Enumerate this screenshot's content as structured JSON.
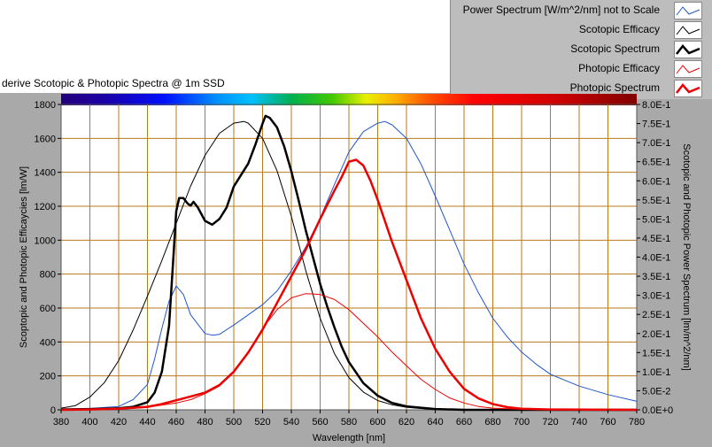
{
  "title": "derive Scotopic & Photopic Spectra @ 1m SSD",
  "legend": [
    {
      "label": "Power Spectrum [W/m^2/nm] not to Scale",
      "color": "#2255cc",
      "width": 1
    },
    {
      "label": "Scotopic Efficacy",
      "color": "#000000",
      "width": 1
    },
    {
      "label": "Scotopic Spectrum",
      "color": "#000000",
      "width": 2.5
    },
    {
      "label": "Photopic Efficacy",
      "color": "#ee0000",
      "width": 1
    },
    {
      "label": "Photopic Spectrum",
      "color": "#ee0000",
      "width": 2.5
    }
  ],
  "chart_data": {
    "type": "line",
    "xlabel": "Wavelength [nm]",
    "ylabel": "Scoptopic and Photopic Efficaycies [lm/W]",
    "y2label": "Scotopic and Photopic Power Spectrum [lm/m^2/nm]",
    "xlim": [
      380,
      780
    ],
    "ylim": [
      0,
      1800
    ],
    "y2lim": [
      0,
      0.8
    ],
    "x_ticks": [
      "380",
      "400",
      "420",
      "440",
      "460",
      "480",
      "500",
      "520",
      "540",
      "560",
      "580",
      "600",
      "620",
      "640",
      "660",
      "680",
      "700",
      "720",
      "740",
      "760",
      "780"
    ],
    "y_ticks": [
      "0",
      "200",
      "400",
      "600",
      "800",
      "1000",
      "1200",
      "1400",
      "1600",
      "1800"
    ],
    "y2_ticks": [
      "0.0E+0",
      "5.0E-2",
      "1.0E-1",
      "1.5E-1",
      "2.0E-1",
      "2.5E-1",
      "3.0E-1",
      "3.5E-1",
      "4.0E-1",
      "4.5E-1",
      "5.0E-1",
      "5.5E-1",
      "6.0E-1",
      "6.5E-1",
      "7.0E-1",
      "7.5E-1",
      "8.0E-1"
    ],
    "grid": true,
    "series": [
      {
        "name": "Power Spectrum [W/m^2/nm] not to Scale",
        "axis": "left",
        "color": "#2255cc",
        "width": 1,
        "x": [
          380,
          400,
          420,
          430,
          440,
          445,
          450,
          455,
          460,
          465,
          470,
          480,
          485,
          490,
          500,
          510,
          520,
          530,
          540,
          550,
          560,
          570,
          580,
          590,
          600,
          605,
          610,
          620,
          630,
          640,
          650,
          660,
          670,
          680,
          690,
          700,
          710,
          720,
          740,
          760,
          780
        ],
        "y": [
          5,
          8,
          20,
          60,
          150,
          300,
          480,
          640,
          730,
          680,
          560,
          450,
          440,
          445,
          500,
          560,
          620,
          700,
          820,
          960,
          1130,
          1330,
          1520,
          1640,
          1690,
          1700,
          1680,
          1600,
          1450,
          1260,
          1060,
          860,
          690,
          540,
          430,
          340,
          270,
          210,
          140,
          90,
          50
        ]
      },
      {
        "name": "Scotopic Efficacy",
        "axis": "left",
        "color": "#000000",
        "width": 1,
        "x": [
          380,
          390,
          400,
          410,
          420,
          430,
          440,
          450,
          460,
          470,
          480,
          490,
          500,
          507,
          510,
          520,
          530,
          540,
          550,
          560,
          570,
          580,
          590,
          600,
          610,
          620,
          630,
          640,
          650,
          660,
          680,
          700,
          740,
          780
        ],
        "y": [
          10,
          25,
          75,
          160,
          290,
          470,
          670,
          880,
          1100,
          1320,
          1500,
          1630,
          1690,
          1700,
          1690,
          1600,
          1410,
          1140,
          820,
          540,
          330,
          190,
          105,
          55,
          30,
          15,
          8,
          4,
          2,
          1,
          0,
          0,
          0,
          0
        ]
      },
      {
        "name": "Scotopic Spectrum",
        "axis": "right",
        "color": "#000000",
        "width": 2.5,
        "x": [
          380,
          400,
          420,
          430,
          440,
          445,
          450,
          455,
          458,
          460,
          462,
          465,
          468,
          470,
          472,
          475,
          480,
          485,
          490,
          495,
          500,
          505,
          510,
          515,
          520,
          522,
          525,
          530,
          535,
          540,
          545,
          550,
          555,
          560,
          565,
          570,
          575,
          580,
          590,
          600,
          610,
          620,
          640,
          660,
          680,
          780
        ],
        "y": [
          0.001,
          0.002,
          0.004,
          0.008,
          0.02,
          0.045,
          0.1,
          0.22,
          0.4,
          0.52,
          0.555,
          0.555,
          0.54,
          0.535,
          0.545,
          0.53,
          0.495,
          0.485,
          0.5,
          0.53,
          0.585,
          0.615,
          0.645,
          0.695,
          0.75,
          0.77,
          0.765,
          0.74,
          0.69,
          0.625,
          0.55,
          0.47,
          0.4,
          0.33,
          0.27,
          0.215,
          0.165,
          0.125,
          0.07,
          0.037,
          0.018,
          0.009,
          0.002,
          0.0,
          0.0,
          0.0
        ]
      },
      {
        "name": "Photopic Efficacy",
        "axis": "left",
        "color": "#ee0000",
        "width": 1,
        "x": [
          380,
          400,
          420,
          440,
          460,
          470,
          480,
          490,
          500,
          510,
          520,
          530,
          540,
          550,
          555,
          560,
          570,
          580,
          590,
          600,
          610,
          620,
          630,
          640,
          650,
          660,
          670,
          680,
          700,
          720,
          740,
          780
        ],
        "y": [
          0,
          1,
          3,
          15,
          40,
          60,
          95,
          140,
          220,
          340,
          480,
          590,
          660,
          685,
          683,
          680,
          650,
          590,
          510,
          430,
          340,
          260,
          180,
          120,
          70,
          40,
          20,
          10,
          3,
          1,
          0,
          0
        ]
      },
      {
        "name": "Photopic Spectrum",
        "axis": "right",
        "color": "#ee0000",
        "width": 2.5,
        "x": [
          380,
          400,
          420,
          440,
          450,
          460,
          470,
          480,
          490,
          500,
          510,
          520,
          530,
          540,
          550,
          560,
          570,
          575,
          580,
          585,
          590,
          595,
          600,
          610,
          620,
          630,
          640,
          650,
          660,
          670,
          680,
          690,
          700,
          720,
          780
        ],
        "y": [
          0,
          0.001,
          0.003,
          0.008,
          0.015,
          0.025,
          0.035,
          0.045,
          0.065,
          0.1,
          0.15,
          0.21,
          0.28,
          0.35,
          0.42,
          0.5,
          0.575,
          0.61,
          0.65,
          0.655,
          0.64,
          0.6,
          0.55,
          0.44,
          0.34,
          0.24,
          0.16,
          0.1,
          0.055,
          0.03,
          0.015,
          0.007,
          0.003,
          0.001,
          0
        ]
      }
    ]
  }
}
